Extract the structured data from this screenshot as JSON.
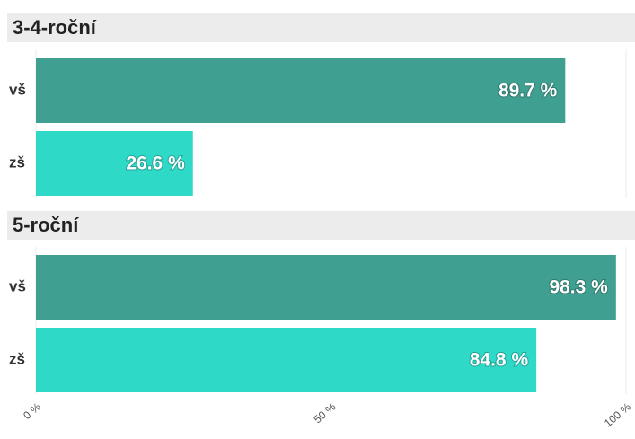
{
  "chart_data": [
    {
      "type": "bar",
      "orientation": "horizontal",
      "title": "3-4-roční",
      "categories": [
        "vš",
        "zš"
      ],
      "values": [
        89.7,
        26.6
      ],
      "value_labels": [
        "89.7 %",
        "26.6 %"
      ],
      "colors": [
        "#3fa091",
        "#2fd9c7"
      ],
      "xlim": [
        0,
        100
      ],
      "xticks": [
        {
          "value": 0,
          "label": "0 %"
        },
        {
          "value": 50,
          "label": "50 %"
        },
        {
          "value": 100,
          "label": "100 %"
        }
      ],
      "grid": true
    },
    {
      "type": "bar",
      "orientation": "horizontal",
      "title": "5-roční",
      "categories": [
        "vš",
        "zš"
      ],
      "values": [
        98.3,
        84.8
      ],
      "value_labels": [
        "98.3 %",
        "84.8 %"
      ],
      "colors": [
        "#3fa091",
        "#2fd9c7"
      ],
      "xlim": [
        0,
        100
      ],
      "xticks": [
        {
          "value": 0,
          "label": "0 %"
        },
        {
          "value": 50,
          "label": "50 %"
        },
        {
          "value": 100,
          "label": "100 %"
        }
      ],
      "grid": true
    }
  ]
}
